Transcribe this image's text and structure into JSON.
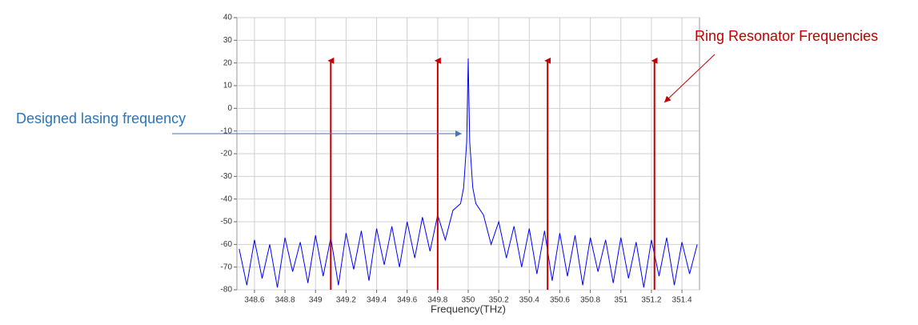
{
  "chart_data": {
    "type": "line",
    "x_label": "Frequency(THz)",
    "xlim": [
      348.485,
      351.515
    ],
    "ylim": [
      -80,
      40
    ],
    "xticks": [
      348.6,
      348.8,
      349,
      349.2,
      349.4,
      349.6,
      349.8,
      350,
      350.2,
      350.4,
      350.6,
      350.8,
      351,
      351.2,
      351.4
    ],
    "yticks": [
      -80,
      -70,
      -60,
      -50,
      -40,
      -30,
      -20,
      -10,
      0,
      10,
      20,
      30,
      40
    ],
    "grid": true,
    "x": [
      348.5,
      348.55,
      348.6,
      348.65,
      348.7,
      348.75,
      348.8,
      348.85,
      348.9,
      348.95,
      349.0,
      349.05,
      349.1,
      349.15,
      349.2,
      349.25,
      349.3,
      349.35,
      349.4,
      349.45,
      349.5,
      349.55,
      349.6,
      349.65,
      349.7,
      349.75,
      349.8,
      349.85,
      349.9,
      349.95,
      349.97,
      349.99,
      350.0,
      350.01,
      350.03,
      350.05,
      350.1,
      350.15,
      350.2,
      350.25,
      350.3,
      350.35,
      350.4,
      350.45,
      350.5,
      350.55,
      350.6,
      350.65,
      350.7,
      350.75,
      350.8,
      350.85,
      350.9,
      350.95,
      351.0,
      351.05,
      351.1,
      351.15,
      351.2,
      351.25,
      351.3,
      351.35,
      351.4,
      351.45,
      351.5
    ],
    "series": [
      {
        "color": "#0000ff",
        "values": [
          -62,
          -78,
          -58,
          -75,
          -60,
          -79,
          -57,
          -72,
          -59,
          -77,
          -56,
          -74,
          -57,
          -78,
          -55,
          -71,
          -54,
          -76,
          -53,
          -69,
          -52,
          -70,
          -50,
          -66,
          -48,
          -63,
          -47,
          -58,
          -45,
          -42,
          -35,
          -15,
          22,
          -15,
          -35,
          -42,
          -47,
          -60,
          -50,
          -66,
          -52,
          -70,
          -53,
          -73,
          -54,
          -76,
          -55,
          -74,
          -56,
          -78,
          -57,
          -72,
          -58,
          -77,
          -57,
          -75,
          -59,
          -79,
          -58,
          -74,
          -57,
          -78,
          -59,
          -73,
          -60
        ]
      }
    ],
    "resonances": {
      "x": [
        349.1,
        349.8,
        350.52,
        351.22
      ],
      "top": 21,
      "color": "#c00000"
    },
    "annotations": [
      "Designed lasing frequency",
      "Ring Resonator Frequencies"
    ]
  }
}
